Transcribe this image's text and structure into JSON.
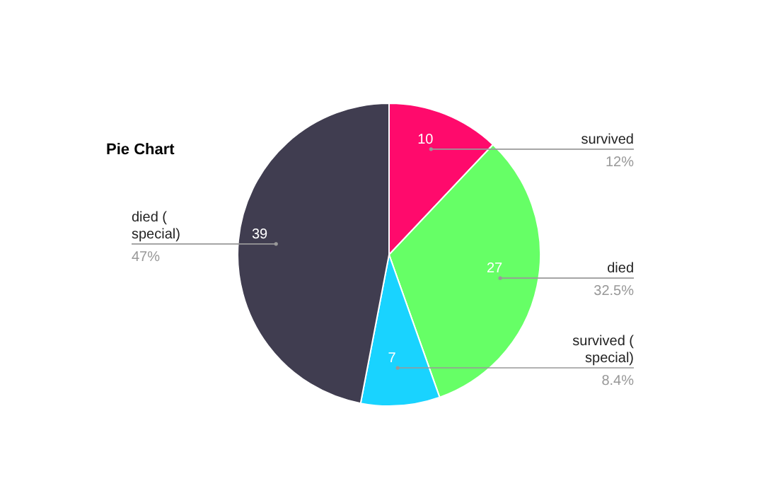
{
  "chart_data": {
    "type": "pie",
    "title": "Pie Chart",
    "categories": [
      "survived",
      "died",
      "survived ( special)",
      "died ( special)"
    ],
    "values": [
      10,
      27,
      7,
      39
    ],
    "colors": [
      "#ff0a6c",
      "#66ff66",
      "#19d3ff",
      "#403d50"
    ],
    "data_labels": true,
    "annotations": [
      "12%",
      "32.5%",
      "8.4%",
      "47%"
    ]
  }
}
